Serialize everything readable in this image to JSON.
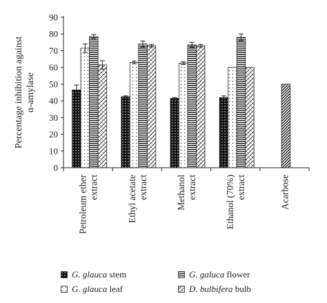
{
  "chart_data": {
    "type": "bar",
    "ylabel_lines": [
      "Percentage inhibition against",
      "α-amylase"
    ],
    "ylim": [
      0,
      90
    ],
    "yticks": [
      0,
      10,
      20,
      30,
      40,
      50,
      60,
      70,
      80,
      90
    ],
    "categories": [
      [
        "Petroleum ether",
        "extract"
      ],
      [
        "Ethyl acetate",
        "extract"
      ],
      [
        "Methanol",
        "extract"
      ],
      [
        "Ethanol (70%)",
        "extract"
      ],
      [
        "Acarbose"
      ]
    ],
    "series": [
      {
        "name": "stem",
        "species": "G. glauca",
        "pattern": "dots-dark",
        "values": [
          46.5,
          42.5,
          41.5,
          42,
          null
        ],
        "errors": [
          3,
          0.5,
          0.5,
          1,
          null
        ]
      },
      {
        "name": "leaf",
        "species": "G. glauca",
        "pattern": "dots-light",
        "values": [
          71.5,
          63,
          62.5,
          60,
          null
        ],
        "errors": [
          2.5,
          0.8,
          0.8,
          0,
          null
        ]
      },
      {
        "name": "flower",
        "species": "G. galuca",
        "pattern": "hstripes",
        "values": [
          78.5,
          74,
          73.5,
          78,
          null
        ],
        "errors": [
          1.2,
          1.8,
          1.5,
          2,
          null
        ]
      },
      {
        "name": "bulb",
        "species": "D. bulbifera",
        "pattern": "zigzag",
        "values": [
          61.5,
          73,
          73,
          60,
          null
        ],
        "errors": [
          2.5,
          0.8,
          0.8,
          0,
          null
        ]
      },
      {
        "name": "Acarbose",
        "pattern": "diag",
        "values": [
          null,
          null,
          null,
          null,
          50
        ],
        "errors": [
          null,
          null,
          null,
          null,
          0
        ]
      }
    ],
    "legend_order": [
      0,
      2,
      1,
      3
    ],
    "legend_position": "bottom"
  }
}
